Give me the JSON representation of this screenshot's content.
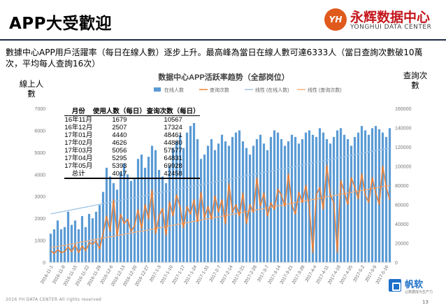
{
  "slide": {
    "title": "APP大受歡迎",
    "description": "數據中心APP用戶活躍率（每日在線人數）逐步上升。最高峰為當日在線人數可達6333人（當日查詢次數破10萬次，平均每人查詢16次）",
    "left_axis_title": "線上人數",
    "right_axis_title": "查詢次數",
    "footer": "2016 YH DATA CENTER All rights reserved",
    "page_number": "13"
  },
  "logo": {
    "mark": "YH",
    "name_zh": "永辉数据中心",
    "name_en": "YONGHUI DATA CENTER"
  },
  "brand": {
    "name": "帆软",
    "tagline": "让数据成为生产力"
  },
  "table": {
    "headers": [
      "月份",
      "使用人数（每日）",
      "查询次数（每日）"
    ],
    "rows": [
      [
        "16年11月",
        "1679",
        "10567"
      ],
      [
        "16年12月",
        "2507",
        "17324"
      ],
      [
        "17年01月",
        "4440",
        "48461"
      ],
      [
        "17年02月",
        "4626",
        "44880"
      ],
      [
        "17年03月",
        "5056",
        "57577"
      ],
      [
        "17年04月",
        "5295",
        "64831"
      ],
      [
        "17年05月",
        "5393",
        "69928"
      ]
    ],
    "total": [
      "总计",
      "4017",
      "42458"
    ]
  },
  "chart_data": {
    "type": "bar",
    "title": "数据中心APP活跃率趋势（全部岗位）",
    "series": [
      {
        "name": "在线人数",
        "type": "bar",
        "axis": "left",
        "color": "#5b9bd5",
        "values": [
          1300,
          1500,
          1900,
          1500,
          1600,
          2300,
          1700,
          1900,
          1500,
          2100,
          1600,
          2200,
          2000,
          2300,
          2600,
          3200,
          4300,
          3900,
          3600,
          3300,
          4100,
          4500,
          4000,
          3700,
          3800,
          4700,
          4900,
          4300,
          4800,
          5300,
          5100,
          4200,
          3900,
          3600,
          4400,
          5200,
          5500,
          5800,
          5200,
          5900,
          6200,
          6333,
          5600,
          4700,
          4900,
          5300,
          5600,
          5100,
          5400,
          5800,
          5500,
          5300,
          5700,
          5900,
          6000,
          5500,
          5200,
          4900,
          5300,
          5600,
          5800,
          5400,
          5100,
          5700,
          6000,
          5900,
          5600,
          5300,
          5500,
          5800,
          5700,
          5400,
          5600,
          5900,
          6000,
          5800,
          5700,
          6100,
          5900,
          5600,
          5400,
          5700,
          6000,
          6100,
          5800,
          5600,
          5300,
          5700,
          5900,
          6200,
          6000,
          5800,
          6100,
          6200,
          6050,
          5900,
          5700,
          6100
        ]
      },
      {
        "name": "查询次数",
        "type": "line",
        "axis": "right",
        "color": "#ed7d31",
        "values": [
          12000,
          9000,
          13000,
          10000,
          11000,
          16000,
          11000,
          18000,
          10000,
          17000,
          12000,
          20000,
          19000,
          22000,
          14000,
          30000,
          48000,
          32000,
          65000,
          28000,
          50000,
          40000,
          45000,
          32000,
          38000,
          55000,
          35000,
          60000,
          45000,
          75000,
          30000,
          48000,
          56000,
          28000,
          63000,
          48000,
          70000,
          58000,
          36000,
          58000,
          50000,
          65000,
          42000,
          73000,
          46000,
          58000,
          45000,
          69000,
          52000,
          65000,
          40000,
          82000,
          52000,
          60000,
          48000,
          72000,
          40000,
          60000,
          52000,
          88000,
          58000,
          72000,
          48000,
          62000,
          55000,
          76000,
          70000,
          58000,
          92000,
          60000,
          50000,
          73000,
          62000,
          80000,
          57000,
          10000,
          70000,
          78000,
          55000,
          101000,
          70000,
          62000,
          10000,
          85000,
          73000,
          60000,
          88000,
          78000,
          66000,
          92000,
          70000,
          62000,
          88000,
          72000,
          60000,
          100000,
          78000,
          65000
        ]
      },
      {
        "name": "线性 (在线人数)",
        "type": "trend",
        "axis": "left",
        "color": "#9dc3e6",
        "from": 2200,
        "to": 5200
      },
      {
        "name": "线性 (查询次数)",
        "type": "trend",
        "axis": "right",
        "color": "#f4b183",
        "from": 15000,
        "to": 80000
      }
    ],
    "x_tick_labels": [
      "2016-11-1",
      "2016-11-8",
      "2016-11-15",
      "2016-11-22",
      "2016-11-29",
      "2016-12-6",
      "2016-12-13",
      "2016-12-20",
      "2016-12-27",
      "2017-1-3",
      "2017-1-10",
      "2017-1-17",
      "2017-1-24",
      "2017-1-31",
      "2017-2-7",
      "2017-2-14",
      "2017-2-21",
      "2017-2-28",
      "2017-3-7",
      "2017-3-14",
      "2017-3-21",
      "2017-3-28",
      "2017-4-4",
      "2017-4-11",
      "2017-4-18",
      "2017-4-25",
      "2017-5-2",
      "2017-5-9",
      "2017-5-16"
    ],
    "y_left_ticks": [
      "0",
      "1000",
      "2000",
      "3000",
      "4000",
      "5000",
      "6000",
      "7000"
    ],
    "y_right_ticks": [
      "0",
      "20000",
      "40000",
      "60000",
      "80000",
      "100000",
      "120000",
      "140000",
      "160000"
    ],
    "ylim_left": [
      0,
      7000
    ],
    "ylim_right": [
      0,
      160000
    ],
    "legend_position": "top",
    "grid": false
  }
}
